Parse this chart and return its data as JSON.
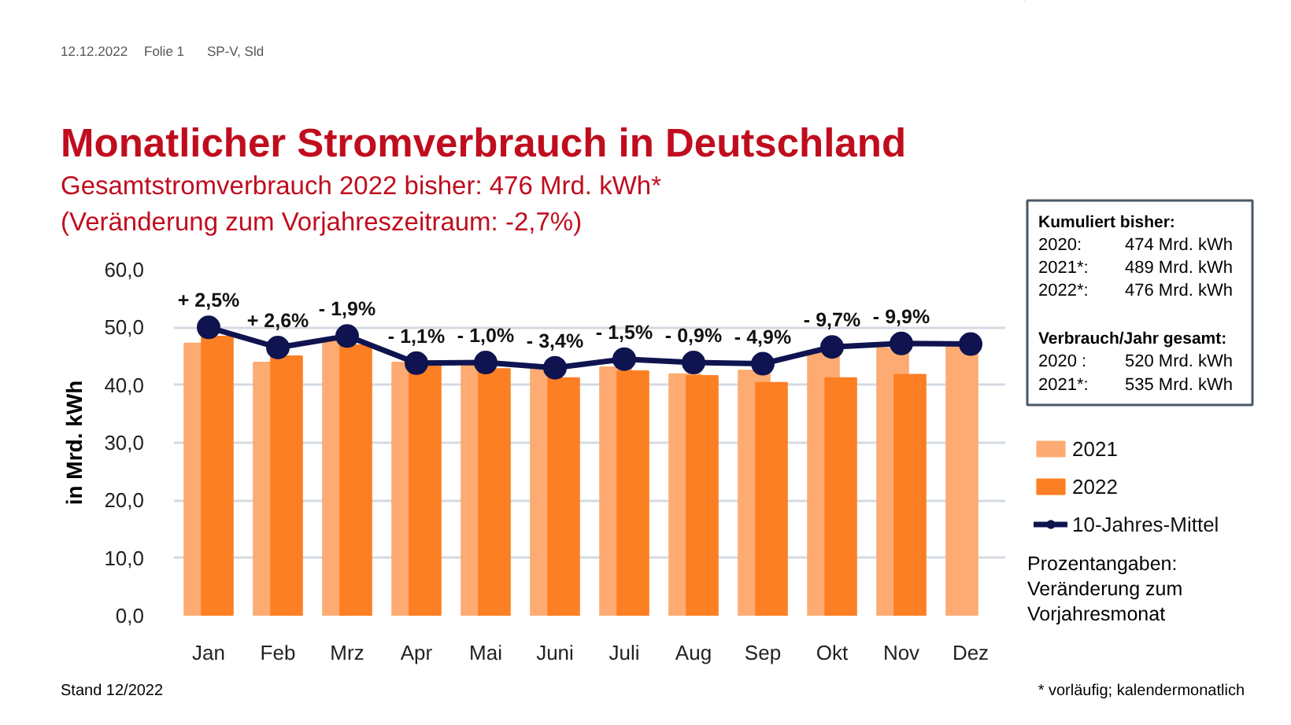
{
  "chart_data": {
    "type": "bar",
    "title": "Monatlicher Stromverbrauch in Deutschland",
    "subtitle": "Gesamtstromverbrauch 2022 bisher: 476 Mrd. kWh*\n(Veränderung zum Vorjahreszeitraum: -2,7%)",
    "ylabel": "in Mrd. kWh",
    "categories": [
      "Jan",
      "Feb",
      "Mrz",
      "Apr",
      "Mai",
      "Juni",
      "Juli",
      "Aug",
      "Sep",
      "Okt",
      "Nov",
      "Dez"
    ],
    "series": [
      {
        "name": "2021",
        "color": "#fdab72",
        "values": [
          47.2,
          43.9,
          47.7,
          43.9,
          43.4,
          42.7,
          43.1,
          41.9,
          42.5,
          45.6,
          46.4,
          46.6
        ]
      },
      {
        "name": "2022",
        "color": "#fd7f24",
        "values": [
          48.4,
          45.0,
          46.9,
          43.5,
          42.8,
          41.2,
          42.4,
          41.6,
          40.4,
          41.2,
          41.8,
          null
        ]
      },
      {
        "name": "10-Jahres-Mittel",
        "type": "line",
        "color": "#0f1450",
        "values": [
          50.0,
          46.5,
          48.5,
          43.8,
          43.9,
          43.0,
          44.5,
          43.9,
          43.7,
          46.6,
          47.2,
          47.1
        ]
      }
    ],
    "ylim": [
      0,
      60
    ],
    "yticks": [
      {
        "value": 0,
        "label": "0,0"
      },
      {
        "value": 10,
        "label": "10,0"
      },
      {
        "value": 20,
        "label": "20,0"
      },
      {
        "value": 30,
        "label": "30,0"
      },
      {
        "value": 40,
        "label": "40,0"
      },
      {
        "value": 50,
        "label": "50,0"
      },
      {
        "value": 60,
        "label": "60,0"
      }
    ],
    "grid": "y",
    "legend": "right",
    "marker": "circle",
    "annotations": [
      "12.12.2022",
      "Folie 1",
      "SP-V, Sld",
      {
        "text": "+ 2,5%",
        "x": "Jan",
        "y": 50.0
      },
      {
        "text": "+ 2,6%",
        "x": "Feb",
        "y": 46.5
      },
      {
        "text": "- 1,9%",
        "x": "Mrz",
        "y": 48.5
      },
      {
        "text": "- 1,1%",
        "x": "Apr",
        "y": 43.8
      },
      {
        "text": "- 1,0%",
        "x": "Mai",
        "y": 43.9
      },
      {
        "text": "- 3,4%",
        "x": "Juni",
        "y": 43.0
      },
      {
        "text": "- 1,5%",
        "x": "Juli",
        "y": 44.5
      },
      {
        "text": "- 0,9%",
        "x": "Aug",
        "y": 43.9
      },
      {
        "text": "- 4,9%",
        "x": "Sep",
        "y": 43.7
      },
      {
        "text": "- 9,7%",
        "x": "Okt",
        "y": 46.6
      },
      {
        "text": "- 9,9%",
        "x": "Nov",
        "y": 47.2
      },
      "Kumuliert bisher:",
      "2020:",
      "474 Mrd. kWh",
      "2021*:",
      "489 Mrd. kWh",
      "2022*:",
      "476 Mrd. kWh",
      "Verbrauch/Jahr gesamt:",
      "2020 :",
      "520 Mrd. kWh",
      "2021*:",
      "535 Mrd. kWh",
      "Prozentangaben:",
      "Veränderung zum",
      "Vorjahresmonat",
      "Stand 12/2022",
      "* vorläufig; kalendermonatlich"
    ]
  }
}
